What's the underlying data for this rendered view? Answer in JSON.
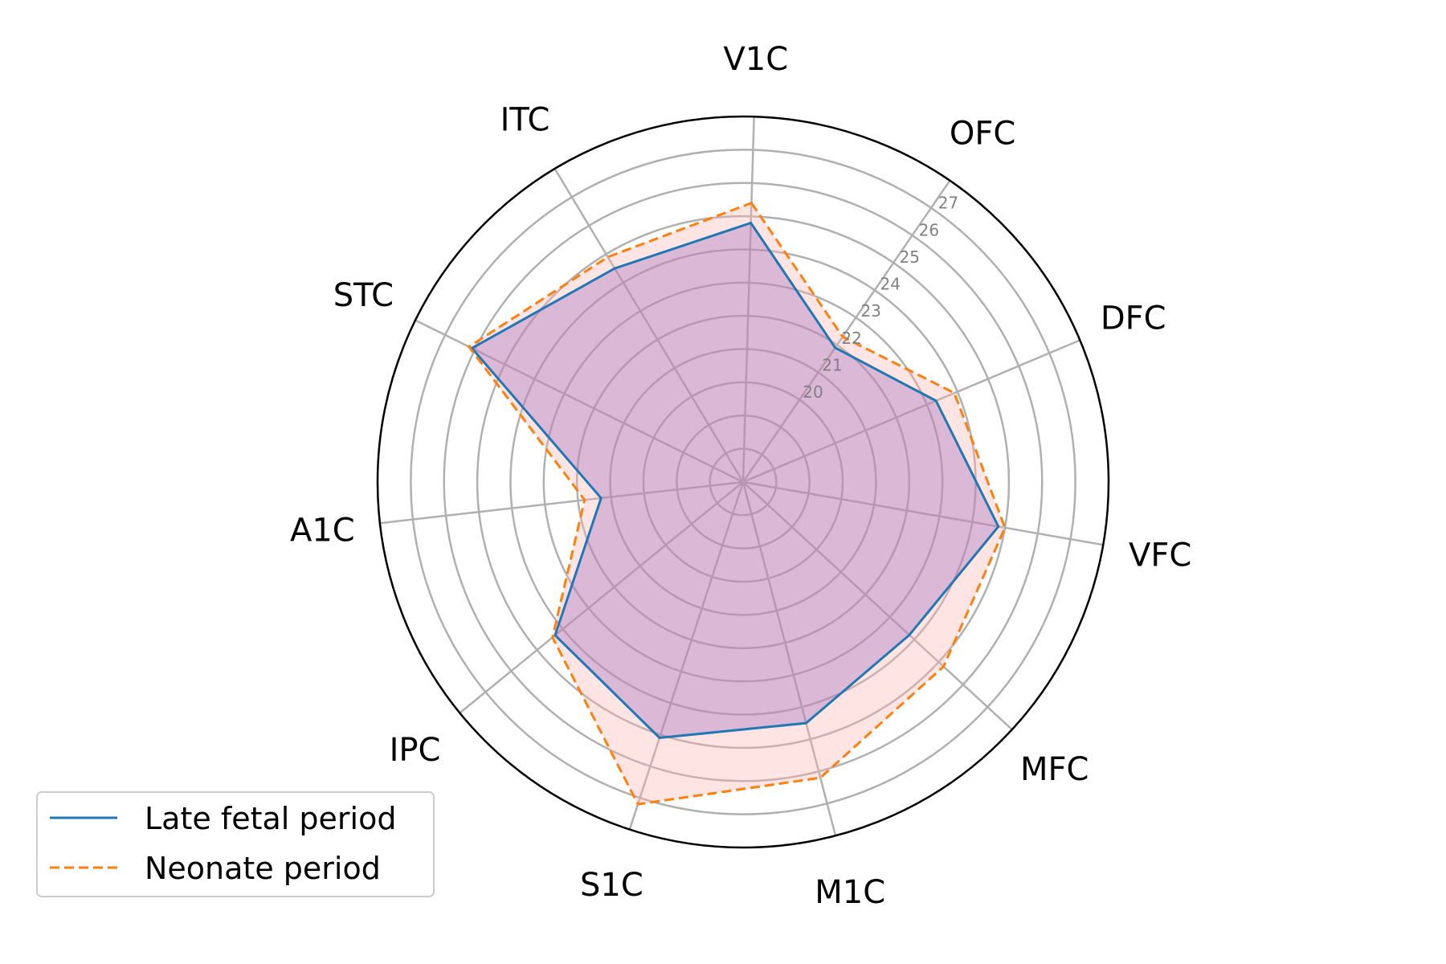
{
  "chart_data": {
    "type": "radar",
    "title": "",
    "categories": [
      "V1C",
      "OFC",
      "DFC",
      "VFC",
      "MFC",
      "M1C",
      "S1C",
      "IPC",
      "A1C",
      "STC",
      "ITC"
    ],
    "r_ticks": [
      20,
      21,
      22,
      23,
      24,
      25,
      26,
      27
    ],
    "rlim": [
      17,
      28
    ],
    "grid": true,
    "legend_position": "lower-left",
    "series": [
      {
        "name": "Late fetal period",
        "color": "#1f77b4",
        "linestyle": "solid",
        "fill": "#9467bd",
        "values": [
          24.8,
          21.9,
          23.3,
          24.8,
          23.8,
          24.5,
          25.1,
          24.3,
          21.3,
          26.1,
          24.5
        ]
      },
      {
        "name": "Neonate period",
        "color": "#ff7f0e",
        "linestyle": "dashed",
        "fill": "#ffb3b3",
        "values": [
          25.4,
          22.3,
          23.9,
          25.0,
          25.2,
          26.2,
          27.2,
          24.4,
          21.8,
          26.2,
          24.9
        ]
      }
    ]
  }
}
